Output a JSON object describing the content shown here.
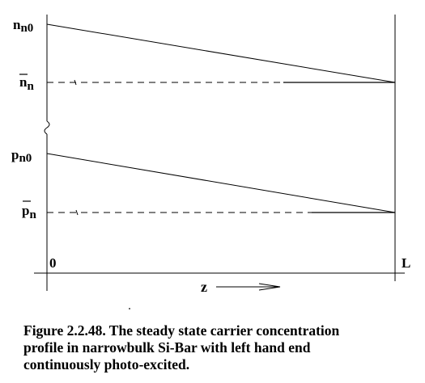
{
  "labels": {
    "nn0": {
      "main": "n",
      "sub": "n0"
    },
    "nn_bar": {
      "main": "n",
      "sub": "n"
    },
    "pn0": {
      "main": "p",
      "sub": "n0"
    },
    "pn_bar": {
      "main": "p",
      "sub": "n"
    },
    "origin": "0",
    "length": "L",
    "axis": "z"
  },
  "caption": {
    "line1": "Figure 2.2.48. The steady state carrier concentration",
    "line2": "profile in narrowbulk Si-Bar with left hand end",
    "line3": "continuously photo-excited."
  }
}
